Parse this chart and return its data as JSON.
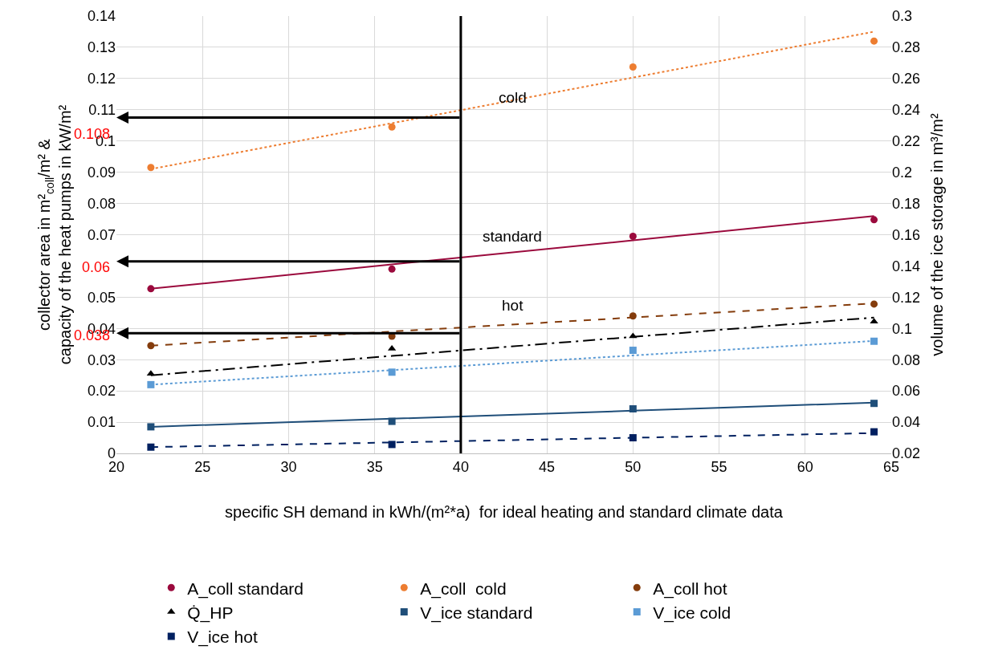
{
  "chart_data": {
    "type": "scatter",
    "xlabel": "specific SH demand in kWh/(m²*a)  for ideal heating and standard climate data",
    "ylabel": "collector area in m²$_{coll}$/m² &\ncapacity of the heat pumps in kW/m²",
    "y2label": "volume of the ice storage in m³/m²",
    "x": [
      22,
      36,
      50,
      64
    ],
    "series": [
      {
        "name": "A_coll standard",
        "color": "#9b0a3d",
        "marker": "circle",
        "values": [
          0.0527,
          0.059,
          0.0695,
          0.0748
        ]
      },
      {
        "name": "A_coll  cold",
        "color": "#ed7d31",
        "marker": "circle",
        "values": [
          0.0915,
          0.1045,
          0.1237,
          0.132
        ]
      },
      {
        "name": "A_coll hot",
        "color": "#843c0c",
        "marker": "circle",
        "values": [
          0.0345,
          0.0375,
          0.044,
          0.0478
        ]
      },
      {
        "name": "Q̇_HP",
        "color": "#000000",
        "marker": "triangle",
        "values": [
          0.0255,
          0.0335,
          0.0375,
          0.0422
        ]
      },
      {
        "name": "V_ice standard",
        "color": "#1f4e79",
        "marker": "square",
        "axis": "y2",
        "values": [
          0.037,
          0.0405,
          0.0485,
          0.052
        ]
      },
      {
        "name": "V_ice cold",
        "color": "#5b9bd5",
        "marker": "square",
        "axis": "y2",
        "values": [
          0.064,
          0.072,
          0.086,
          0.0918
        ]
      },
      {
        "name": "V_ice hot",
        "color": "#002060",
        "marker": "square",
        "axis": "y2",
        "values": [
          0.024,
          0.0257,
          0.03,
          0.0338
        ]
      },
      {
        "type": "line",
        "color": "#9b0a3d",
        "line_style": "solid",
        "values": [
          0.0527,
          0.0605,
          0.0682,
          0.076
        ]
      },
      {
        "type": "line",
        "color": "#ed7d31",
        "line_style": "dotted",
        "values": [
          0.091,
          0.1057,
          0.1203,
          0.135
        ]
      },
      {
        "type": "line",
        "color": "#843c0c",
        "line_style": "dashed",
        "values": [
          0.0345,
          0.039,
          0.0435,
          0.048
        ]
      },
      {
        "type": "line",
        "color": "#000000",
        "line_style": "dashdot",
        "values": [
          0.025,
          0.0312,
          0.0373,
          0.0435
        ]
      },
      {
        "type": "line",
        "color": "#1f4e79",
        "line_style": "solid",
        "axis": "y2",
        "values": [
          0.037,
          0.0422,
          0.0473,
          0.0525
        ]
      },
      {
        "type": "line",
        "color": "#5b9bd5",
        "line_style": "dotted",
        "axis": "y2",
        "values": [
          0.064,
          0.0733,
          0.0827,
          0.092
        ]
      },
      {
        "type": "line",
        "color": "#002060",
        "line_style": "dashed",
        "axis": "y2",
        "values": [
          0.024,
          0.027,
          0.03,
          0.033
        ]
      }
    ],
    "xlim": [
      20,
      65
    ],
    "xticks": [
      20,
      25,
      30,
      35,
      40,
      45,
      50,
      55,
      60,
      65
    ],
    "ylim": [
      0,
      0.14
    ],
    "yticks": [
      0,
      0.01,
      0.02,
      0.03,
      0.04,
      0.05,
      0.07,
      0.08,
      0.09,
      0.1,
      0.11,
      0.12,
      0.13,
      0.14
    ],
    "y2lim": [
      0.02,
      0.3
    ],
    "y2ticks": [
      0.02,
      0.04,
      0.06,
      0.08,
      0.1,
      0.12,
      0.14,
      0.16,
      0.18,
      0.2,
      0.22,
      0.24,
      0.26,
      0.28,
      0.3
    ],
    "ref_lines": [
      {
        "axis": "x",
        "value": 40,
        "color": "#000000"
      }
    ],
    "annotations": [
      "cold",
      "standard",
      "hot",
      "0.108",
      "0.06",
      "0.038"
    ],
    "grid": true,
    "legend": "bottom"
  }
}
